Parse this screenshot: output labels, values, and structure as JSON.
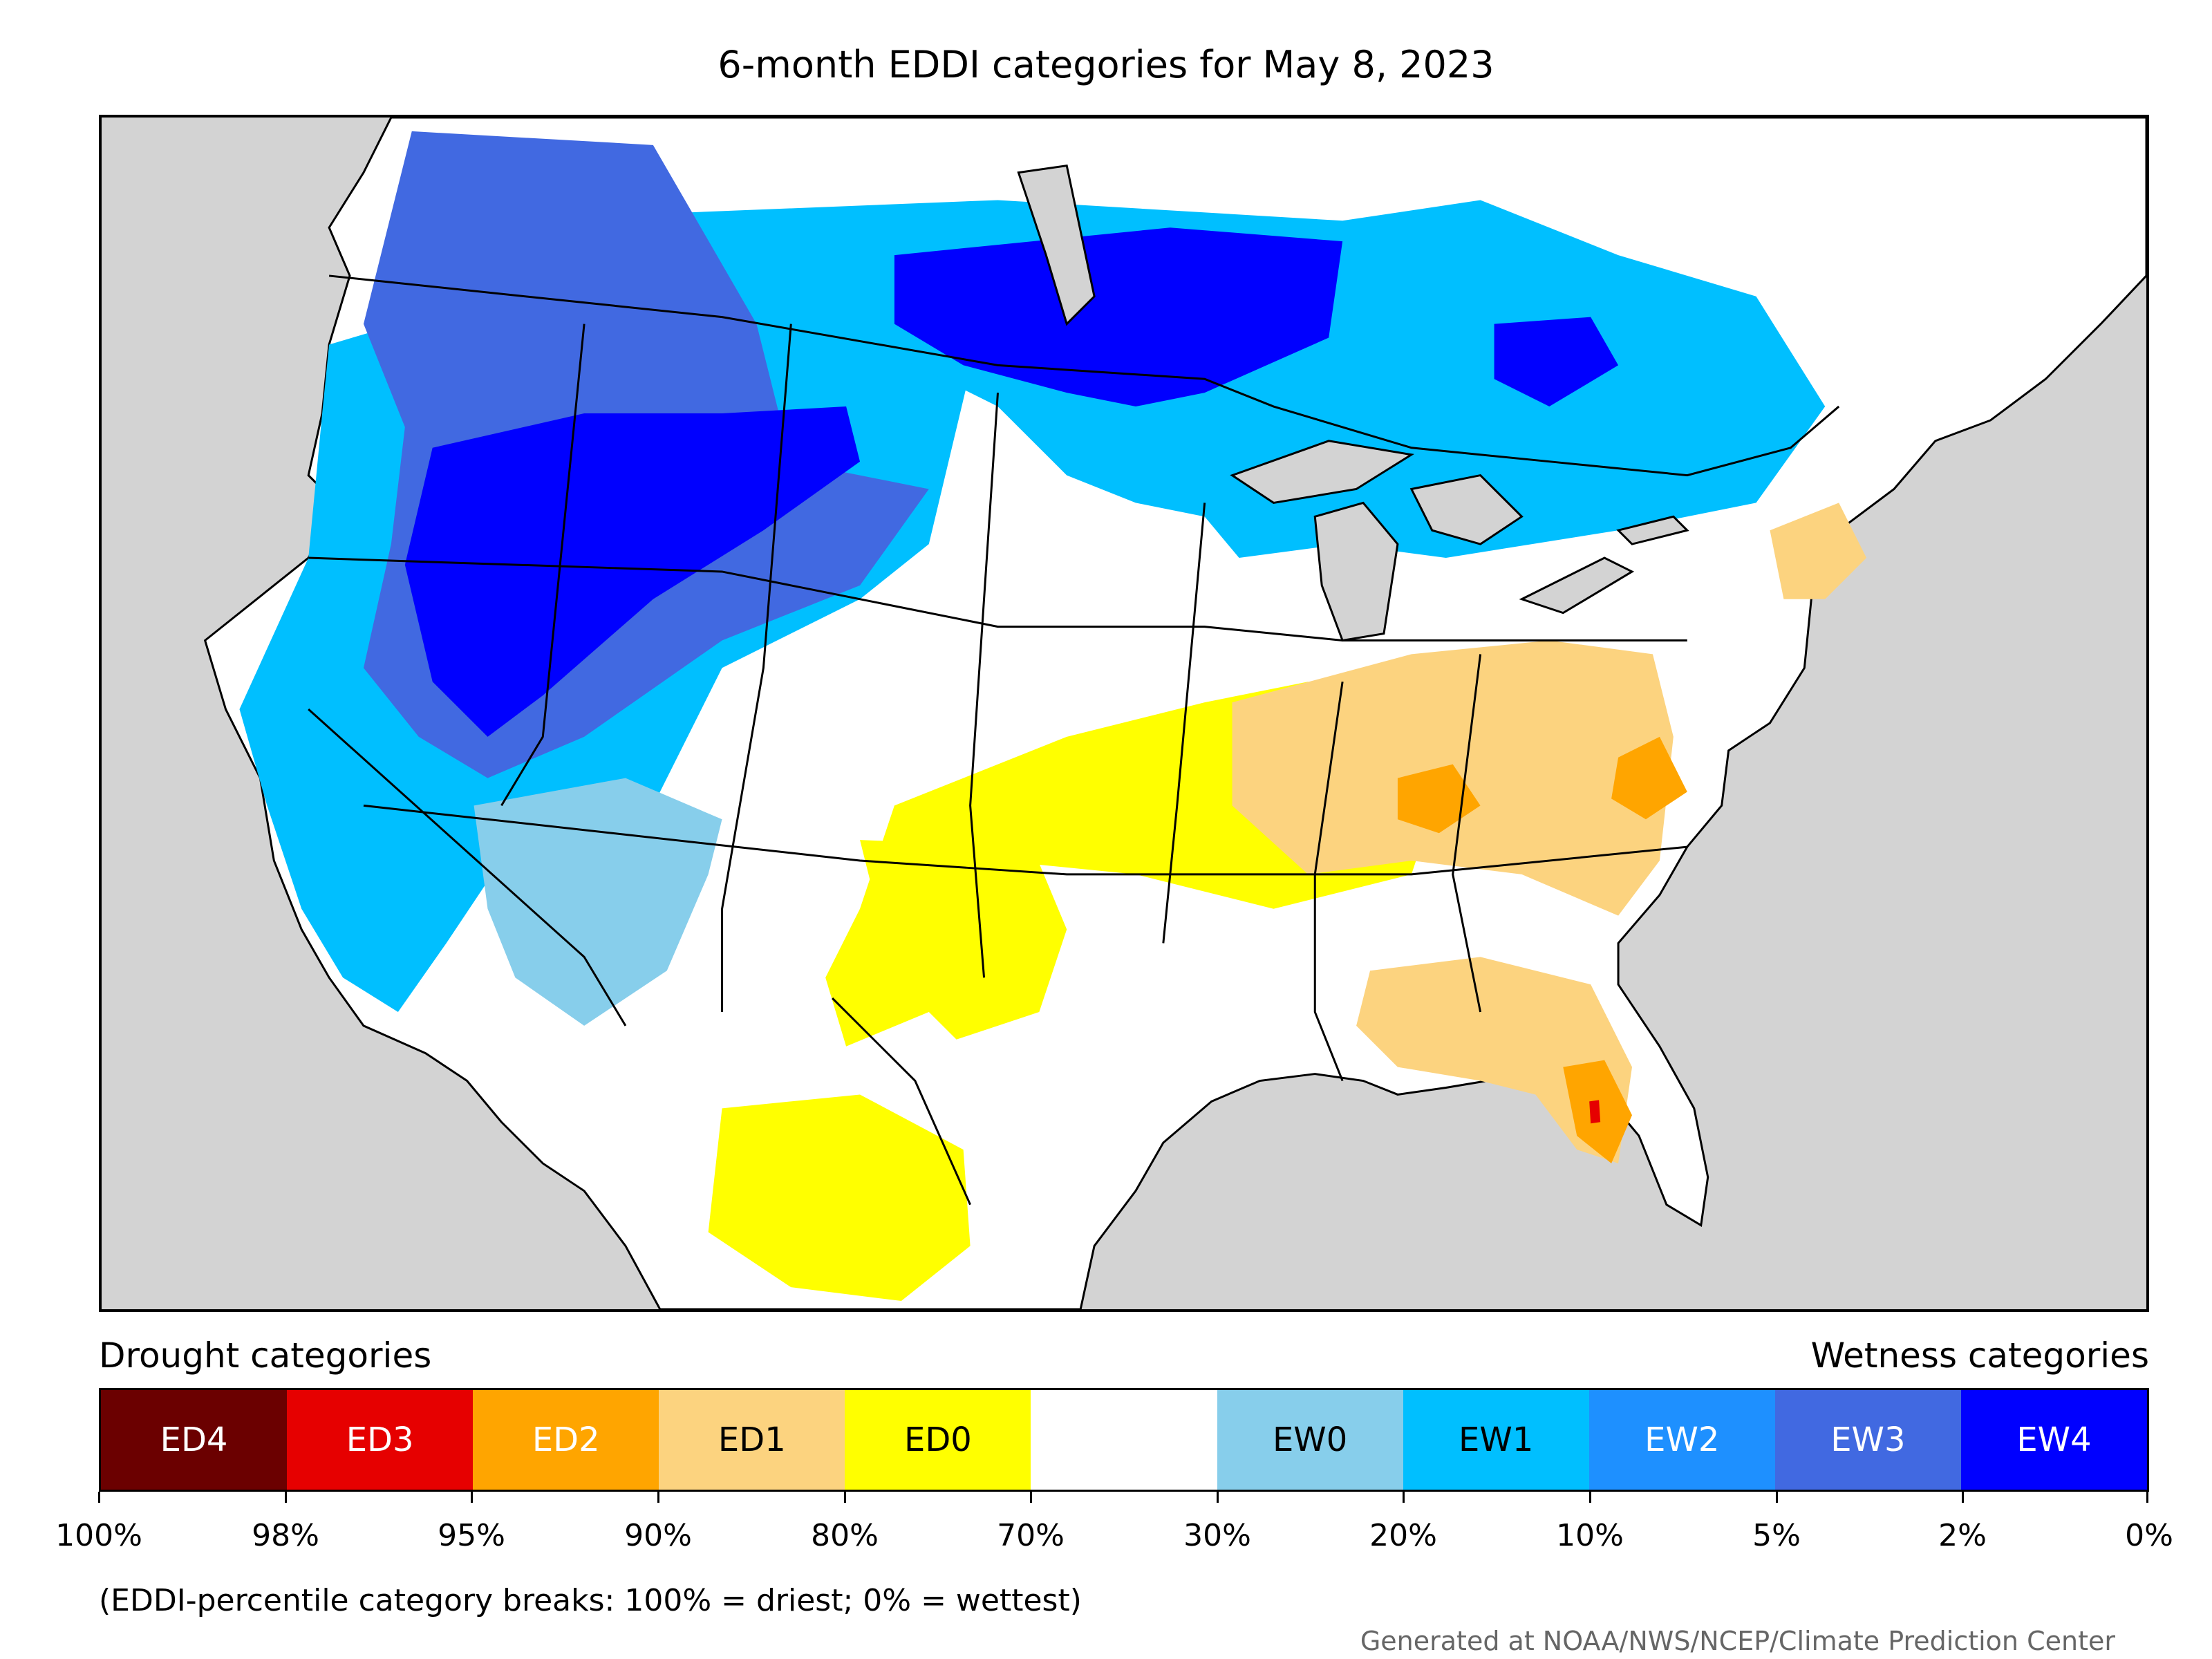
{
  "title": "6-month EDDI categories for May 8, 2023",
  "legend": {
    "drought_header": "Drought categories",
    "wetness_header": "Wetness categories",
    "categories": [
      {
        "label": "ED4",
        "color": "#6b0000",
        "text_color": "#ffffff"
      },
      {
        "label": "ED3",
        "color": "#e60000",
        "text_color": "#ffffff"
      },
      {
        "label": "ED2",
        "color": "#ffa500",
        "text_color": "#ffffff"
      },
      {
        "label": "ED1",
        "color": "#fcd37f",
        "text_color": "#000000"
      },
      {
        "label": "ED0",
        "color": "#ffff00",
        "text_color": "#000000"
      },
      {
        "label": "",
        "color": "#ffffff",
        "text_color": "#000000"
      },
      {
        "label": "EW0",
        "color": "#87ceeb",
        "text_color": "#000000"
      },
      {
        "label": "EW1",
        "color": "#00bfff",
        "text_color": "#000000"
      },
      {
        "label": "EW2",
        "color": "#1e90ff",
        "text_color": "#ffffff"
      },
      {
        "label": "EW3",
        "color": "#4169e1",
        "text_color": "#ffffff"
      },
      {
        "label": "EW4",
        "color": "#0000ff",
        "text_color": "#ffffff"
      }
    ],
    "breaks": [
      "100%",
      "98%",
      "95%",
      "90%",
      "80%",
      "70%",
      "30%",
      "20%",
      "10%",
      "5%",
      "2%",
      "0%"
    ]
  },
  "footnote": "(EDDI-percentile category breaks: 100% = driest; 0% = wettest)",
  "credit": "Generated at NOAA/NWS/NCEP/Climate Prediction Center",
  "map": {
    "ocean_color": "#d3d3d3",
    "land_color": "#ffffff",
    "lake_color": "#d3d3d3",
    "border_color": "#000000"
  }
}
